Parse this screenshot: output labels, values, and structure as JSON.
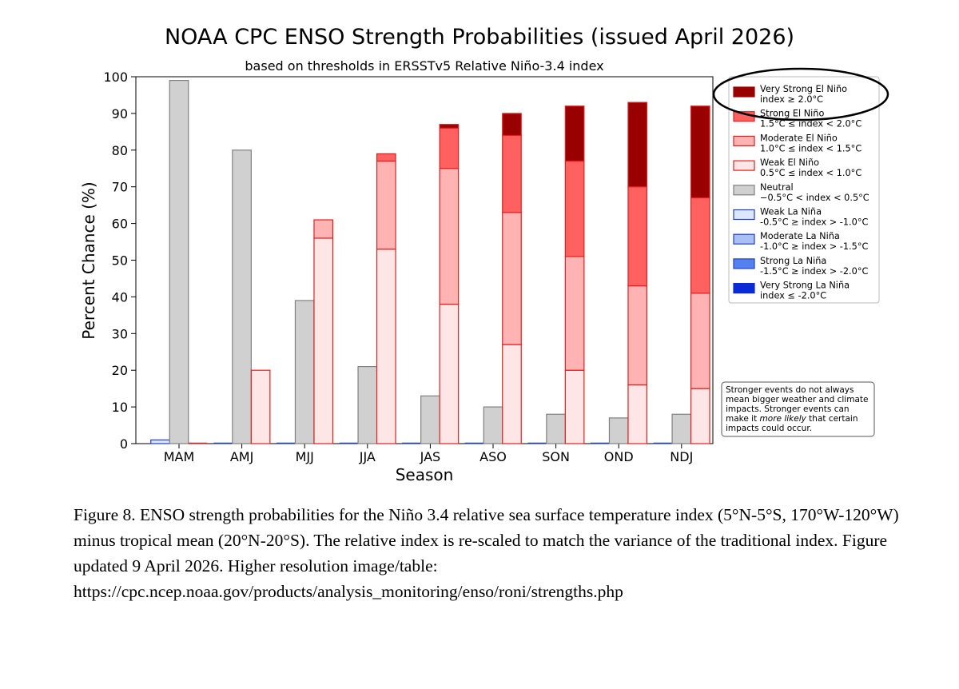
{
  "chart_data": {
    "type": "bar",
    "title": "NOAA CPC ENSO Strength Probabilities (issued April 2026)",
    "subtitle": "based on thresholds in ERSSTv5 Relative Niño-3.4 index",
    "xlabel": "Season",
    "ylabel": "Percent Chance (%)",
    "ylim": [
      0,
      100
    ],
    "yticks": [
      0,
      10,
      20,
      30,
      40,
      50,
      60,
      70,
      80,
      90,
      100
    ],
    "categories": [
      "MAM",
      "AMJ",
      "MJJ",
      "JJA",
      "JAS",
      "ASO",
      "SON",
      "OND",
      "NDJ"
    ],
    "la_nina": [
      1,
      0,
      0,
      0,
      0,
      0,
      0,
      0,
      0
    ],
    "neutral": [
      99,
      80,
      39,
      21,
      13,
      10,
      8,
      7,
      8
    ],
    "el_nino_stack": [
      {
        "key": "weak",
        "values": [
          0,
          20,
          56,
          53,
          38,
          27,
          20,
          16,
          15
        ]
      },
      {
        "key": "moderate",
        "values": [
          0,
          0,
          5,
          24,
          37,
          36,
          31,
          27,
          26
        ]
      },
      {
        "key": "strong",
        "values": [
          0,
          0,
          0,
          2,
          11,
          21,
          26,
          27,
          26
        ]
      },
      {
        "key": "very_strong",
        "values": [
          0,
          0,
          0,
          0,
          1,
          6,
          15,
          23,
          25
        ]
      }
    ],
    "legend": [
      {
        "key": "very_strong_el_nino",
        "line1": "Very Strong El Niño",
        "line2": "index ≥ 2.0°C",
        "fill": "#990000",
        "stroke": "#990000"
      },
      {
        "key": "strong_el_nino",
        "line1": "Strong El Niño",
        "line2": "1.5°C ≤ index < 2.0°C",
        "fill": "#ff6060",
        "stroke": "#e02020"
      },
      {
        "key": "moderate_el_nino",
        "line1": "Moderate El Niño",
        "line2": "1.0°C ≤ index < 1.5°C",
        "fill": "#ffb3b3",
        "stroke": "#e02020"
      },
      {
        "key": "weak_el_nino",
        "line1": "Weak El Niño",
        "line2": "0.5°C ≤ index < 1.0°C",
        "fill": "#ffe6e6",
        "stroke": "#e02020"
      },
      {
        "key": "neutral",
        "line1": "Neutral",
        "line2": "−0.5°C < index < 0.5°C",
        "fill": "#d0d0d0",
        "stroke": "#808080"
      },
      {
        "key": "weak_la_nina",
        "line1": "Weak La Niña",
        "line2": "-0.5°C ≥ index > -1.0°C",
        "fill": "#dde6ff",
        "stroke": "#2040c0"
      },
      {
        "key": "moderate_la_nina",
        "line1": "Moderate La Niña",
        "line2": "-1.0°C ≥ index > -1.5°C",
        "fill": "#a9bff5",
        "stroke": "#2040c0"
      },
      {
        "key": "strong_la_nina",
        "line1": "Strong La Niña",
        "line2": "-1.5°C ≥ index > -2.0°C",
        "fill": "#5580ef",
        "stroke": "#2040c0"
      },
      {
        "key": "very_strong_la_nina",
        "line1": "Very Strong La Niña",
        "line2": "index ≤ -2.0°C",
        "fill": "#0a2ad8",
        "stroke": "#0a2ad8"
      }
    ],
    "legend_placement": "outside-right",
    "annotation": {
      "lines": [
        "Stronger events do not always",
        "mean bigger weather and climate",
        "impacts. Stronger events can",
        "make it ",
        "more likely",
        " that certain",
        "impacts could occur."
      ]
    }
  },
  "caption": "Figure 8. ENSO strength probabilities for the Niño 3.4 relative sea surface temperature index (5°N-5°S, 170°W-120°W) minus tropical mean (20°N-20°S). The relative index is re-scaled to match the variance of the traditional index. Figure updated 9 April 2026. Higher resolution image/table: https://cpc.ncep.noaa.gov/products/analysis_monitoring/enso/roni/strengths.php",
  "colors": {
    "neutral_fill": "#d0d0d0",
    "neutral_stroke": "#808080",
    "el_nino_stroke": "#e02020",
    "weak_el_nino": "#ffe6e6",
    "moderate_el_nino": "#ffb3b3",
    "strong_el_nino": "#ff6060",
    "very_strong_el_nino": "#990000",
    "weak_la_nina": "#dde6ff",
    "la_nina_stroke": "#2040c0"
  }
}
